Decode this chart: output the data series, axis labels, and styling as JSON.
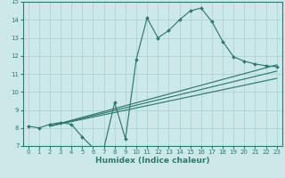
{
  "xlabel": "Humidex (Indice chaleur)",
  "background_color": "#cde8e8",
  "line_color": "#2d7a6e",
  "grid_color": "#aacfcf",
  "xlim": [
    -0.5,
    23.5
  ],
  "ylim": [
    7,
    15
  ],
  "xticks": [
    0,
    1,
    2,
    3,
    4,
    5,
    6,
    7,
    8,
    9,
    10,
    11,
    12,
    13,
    14,
    15,
    16,
    17,
    18,
    19,
    20,
    21,
    22,
    23
  ],
  "yticks": [
    7,
    8,
    9,
    10,
    11,
    12,
    13,
    14,
    15
  ],
  "curve_x": [
    0,
    1,
    2,
    3,
    4,
    5,
    6,
    7,
    8,
    9,
    10,
    11,
    12,
    13,
    14,
    15,
    16,
    17,
    18,
    19,
    20,
    21,
    22,
    23
  ],
  "curve_y": [
    8.1,
    8.0,
    8.2,
    8.3,
    8.2,
    7.5,
    6.9,
    6.85,
    9.4,
    7.4,
    11.8,
    14.1,
    13.0,
    13.4,
    14.0,
    14.5,
    14.65,
    13.9,
    12.8,
    11.95,
    11.7,
    11.55,
    11.45,
    11.4
  ],
  "trendline1": [
    [
      2,
      8.1
    ],
    [
      23,
      11.5
    ]
  ],
  "trendline2": [
    [
      2,
      8.1
    ],
    [
      23,
      11.15
    ]
  ],
  "trendline3": [
    [
      2,
      8.1
    ],
    [
      23,
      10.75
    ]
  ]
}
